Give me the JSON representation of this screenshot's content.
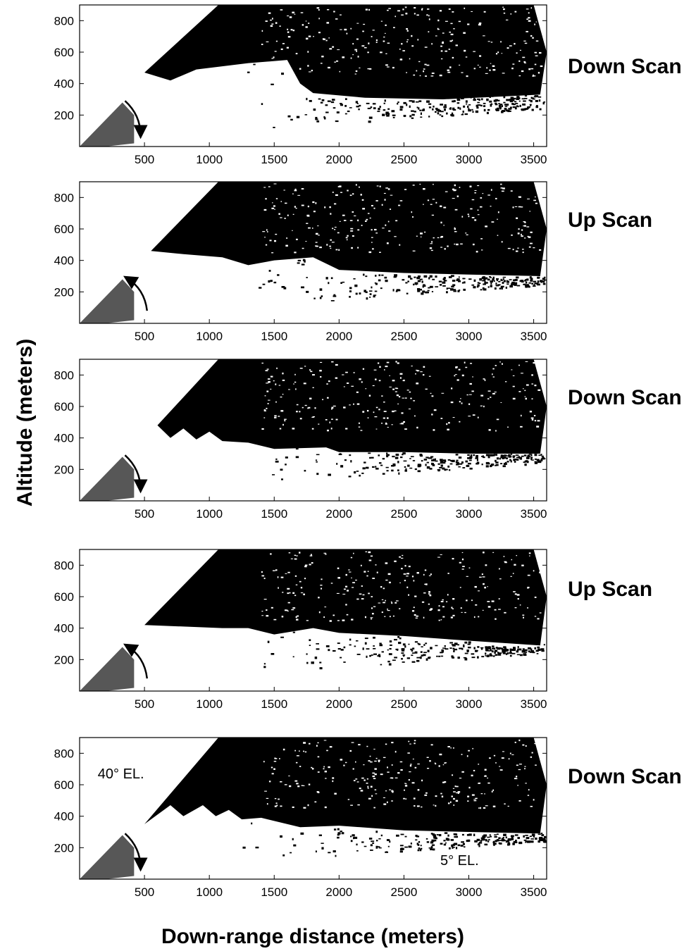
{
  "chart_data": [
    {
      "type": "heatmap",
      "title": "Down Scan",
      "xlabel": "Down-range distance (meters)",
      "ylabel": "Altitude (meters)",
      "xlim": [
        0,
        3600
      ],
      "ylim": [
        0,
        900
      ],
      "x_ticks": [
        500,
        1000,
        1500,
        2000,
        2500,
        3000,
        3500
      ],
      "y_ticks": [
        200,
        400,
        600,
        800
      ],
      "scan_direction": "down",
      "dense_return_boundary_m": [
        [
          500,
          470
        ],
        [
          700,
          420
        ],
        [
          900,
          490
        ],
        [
          1300,
          530
        ],
        [
          1600,
          550
        ],
        [
          1700,
          400
        ],
        [
          1800,
          340
        ],
        [
          2200,
          310
        ],
        [
          2800,
          300
        ],
        [
          3550,
          330
        ]
      ]
    },
    {
      "type": "heatmap",
      "title": "Up Scan",
      "xlabel": "Down-range distance (meters)",
      "ylabel": "Altitude (meters)",
      "xlim": [
        0,
        3600
      ],
      "ylim": [
        0,
        900
      ],
      "x_ticks": [
        500,
        1000,
        1500,
        2000,
        2500,
        3000,
        3500
      ],
      "y_ticks": [
        200,
        400,
        600,
        800
      ],
      "scan_direction": "up",
      "dense_return_boundary_m": [
        [
          550,
          460
        ],
        [
          800,
          440
        ],
        [
          1100,
          420
        ],
        [
          1300,
          370
        ],
        [
          1500,
          400
        ],
        [
          1800,
          420
        ],
        [
          2000,
          340
        ],
        [
          2500,
          320
        ],
        [
          3000,
          310
        ],
        [
          3550,
          300
        ]
      ]
    },
    {
      "type": "heatmap",
      "title": "Down Scan",
      "xlabel": "Down-range distance (meters)",
      "ylabel": "Altitude (meters)",
      "xlim": [
        0,
        3600
      ],
      "ylim": [
        0,
        900
      ],
      "x_ticks": [
        500,
        1000,
        1500,
        2000,
        2500,
        3000,
        3500
      ],
      "y_ticks": [
        200,
        400,
        600,
        800
      ],
      "scan_direction": "down",
      "dense_return_boundary_m": [
        [
          600,
          480
        ],
        [
          700,
          400
        ],
        [
          800,
          460
        ],
        [
          900,
          390
        ],
        [
          1000,
          440
        ],
        [
          1100,
          380
        ],
        [
          1300,
          370
        ],
        [
          1500,
          330
        ],
        [
          1900,
          340
        ],
        [
          2000,
          310
        ],
        [
          2500,
          310
        ],
        [
          3000,
          300
        ],
        [
          3550,
          300
        ]
      ]
    },
    {
      "type": "heatmap",
      "title": "Up Scan",
      "xlabel": "Down-range distance (meters)",
      "ylabel": "Altitude (meters)",
      "xlim": [
        0,
        3600
      ],
      "ylim": [
        0,
        900
      ],
      "x_ticks": [
        500,
        1000,
        1500,
        2000,
        2500,
        3000,
        3500
      ],
      "y_ticks": [
        200,
        400,
        600,
        800
      ],
      "scan_direction": "up",
      "dense_return_boundary_m": [
        [
          500,
          420
        ],
        [
          800,
          410
        ],
        [
          1100,
          400
        ],
        [
          1300,
          400
        ],
        [
          1500,
          360
        ],
        [
          1800,
          400
        ],
        [
          2000,
          370
        ],
        [
          2500,
          350
        ],
        [
          3000,
          320
        ],
        [
          3550,
          290
        ]
      ]
    },
    {
      "type": "heatmap",
      "title": "Down Scan",
      "xlabel": "Down-range distance (meters)",
      "ylabel": "Altitude (meters)",
      "xlim": [
        0,
        3600
      ],
      "ylim": [
        0,
        900
      ],
      "x_ticks": [
        500,
        1000,
        1500,
        2000,
        2500,
        3000,
        3500
      ],
      "y_ticks": [
        200,
        400,
        600,
        800
      ],
      "scan_direction": "down",
      "annotations": [
        "40° EL.",
        "5° EL."
      ],
      "dense_return_boundary_m": [
        [
          500,
          350
        ],
        [
          700,
          470
        ],
        [
          800,
          400
        ],
        [
          950,
          470
        ],
        [
          1050,
          400
        ],
        [
          1150,
          440
        ],
        [
          1250,
          380
        ],
        [
          1400,
          390
        ],
        [
          1700,
          330
        ],
        [
          2000,
          340
        ],
        [
          2500,
          310
        ],
        [
          3000,
          300
        ],
        [
          3550,
          290
        ]
      ]
    }
  ],
  "labels": {
    "ylabel": "Altitude (meters)",
    "xlabel": "Down-range distance (meters)"
  },
  "colors": {
    "returns": "#000000",
    "background": "#ffffff"
  }
}
